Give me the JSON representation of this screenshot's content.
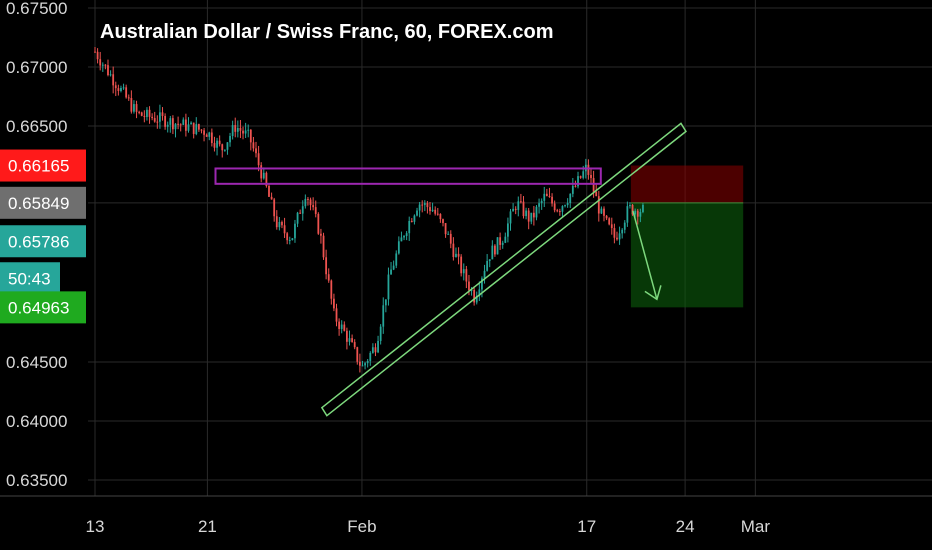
{
  "title": "Australian Dollar / Swiss Franc, 60, FOREX.com",
  "colors": {
    "background": "#000000",
    "grid": "#2a2a2a",
    "up_candle": "#26a69a",
    "down_candle": "#ef5350",
    "resistance_box": "#9c27b0",
    "trend_channel": "#7dd87d",
    "stop_zone": "#8b0000",
    "target_zone": "#0b5d0b",
    "badge_stop": "#ff1a1a",
    "badge_current": "#6f6f6f",
    "badge_last": "#26a69a",
    "badge_timer": "#26a69a",
    "badge_target": "#1faa1f"
  },
  "price_badges": {
    "stop": "0.66165",
    "entry": "0.65849",
    "last": "0.65786",
    "countdown": "50:43",
    "target": "0.64963"
  },
  "chart_data": {
    "type": "candlestick",
    "title": "Australian Dollar / Swiss Franc, 60, FOREX.com",
    "ylim": [
      0.635,
      0.675
    ],
    "y_ticks": [
      "0.67500",
      "0.67000",
      "0.66500",
      "0.65849",
      "0.64500",
      "0.64000",
      "0.63500"
    ],
    "x_ticks": [
      "13",
      "21",
      "Feb",
      "17",
      "24",
      "Mar"
    ],
    "grid": true,
    "price_path": [
      {
        "x": "Jan 13",
        "y": 0.6713
      },
      {
        "x": "Jan 14",
        "y": 0.6695
      },
      {
        "x": "Jan 16",
        "y": 0.666
      },
      {
        "x": "Jan 18",
        "y": 0.6655
      },
      {
        "x": "Jan 21",
        "y": 0.6645
      },
      {
        "x": "Jan 22",
        "y": 0.663
      },
      {
        "x": "Jan 23",
        "y": 0.665
      },
      {
        "x": "Jan 24",
        "y": 0.664
      },
      {
        "x": "Jan 25",
        "y": 0.6605
      },
      {
        "x": "Jan 26",
        "y": 0.6565
      },
      {
        "x": "Jan 27",
        "y": 0.6555
      },
      {
        "x": "Jan 28",
        "y": 0.6595
      },
      {
        "x": "Jan 29",
        "y": 0.656
      },
      {
        "x": "Jan 30",
        "y": 0.649
      },
      {
        "x": "Jan 31",
        "y": 0.647
      },
      {
        "x": "Feb 1",
        "y": 0.6445
      },
      {
        "x": "Feb 2",
        "y": 0.6465
      },
      {
        "x": "Feb 3",
        "y": 0.6525
      },
      {
        "x": "Feb 4",
        "y": 0.656
      },
      {
        "x": "Feb 5",
        "y": 0.6585
      },
      {
        "x": "Feb 6",
        "y": 0.658
      },
      {
        "x": "Feb 7",
        "y": 0.656
      },
      {
        "x": "Feb 8",
        "y": 0.653
      },
      {
        "x": "Feb 9",
        "y": 0.6505
      },
      {
        "x": "Feb 10",
        "y": 0.654
      },
      {
        "x": "Feb 11",
        "y": 0.6555
      },
      {
        "x": "Feb 12",
        "y": 0.6585
      },
      {
        "x": "Feb 13",
        "y": 0.657
      },
      {
        "x": "Feb 14",
        "y": 0.659
      },
      {
        "x": "Feb 15",
        "y": 0.658
      },
      {
        "x": "Feb 16",
        "y": 0.6595
      },
      {
        "x": "Feb 17",
        "y": 0.6615
      },
      {
        "x": "Feb 18",
        "y": 0.6575
      },
      {
        "x": "Feb 19",
        "y": 0.6555
      },
      {
        "x": "Feb 20",
        "y": 0.658
      },
      {
        "x": "Feb 21",
        "y": 0.65786
      }
    ],
    "annotations": {
      "resistance_zone": {
        "from": "Jan 23",
        "to": "Feb 18",
        "y_low": 0.6601,
        "y_high": 0.6614
      },
      "rising_channel": {
        "start": {
          "x": "Jan 30",
          "y": 0.6435
        },
        "end": {
          "x": "Feb 21",
          "y": 0.662
        }
      },
      "short_position": {
        "entry": 0.65849,
        "stop": 0.66165,
        "target": 0.64963,
        "from": "Feb 20",
        "to": "Feb 26"
      }
    }
  }
}
